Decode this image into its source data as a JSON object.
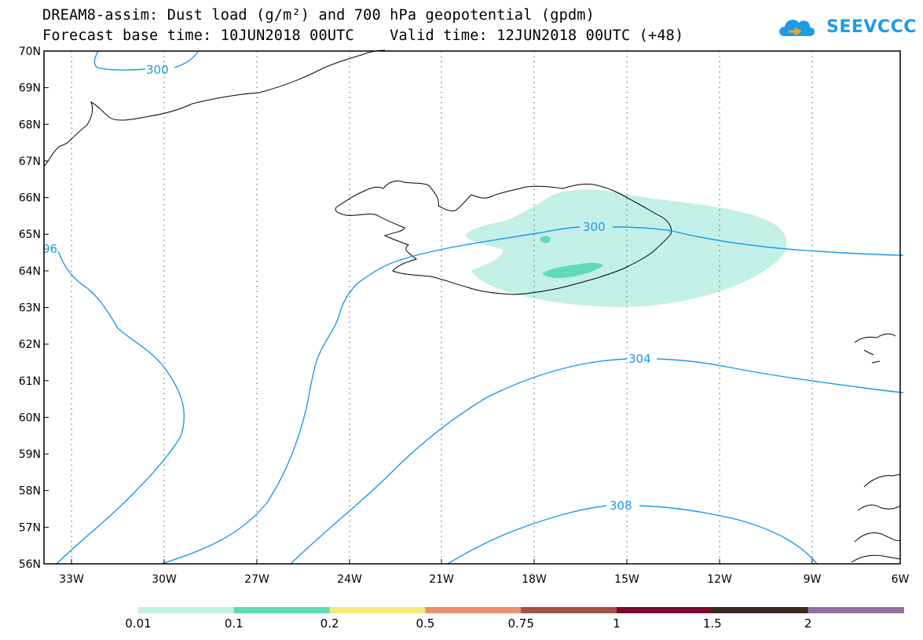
{
  "title_line1": "DREAM8-assim: Dust load (g/m²) and 700 hPa geopotential (gpdm)",
  "title_line2": "Forecast base time: 10JUN2018 00UTC    Valid time: 12JUN2018 00UTC (+48)",
  "logo_text": "SEEVCCC",
  "lat_labels": [
    "70N",
    "69N",
    "68N",
    "67N",
    "66N",
    "65N",
    "64N",
    "63N",
    "62N",
    "61N",
    "60N",
    "59N",
    "58N",
    "57N",
    "56N"
  ],
  "lon_labels": [
    "33W",
    "30W",
    "27W",
    "24W",
    "21W",
    "18W",
    "15W",
    "12W",
    "9W",
    "6W"
  ],
  "contour_labels": {
    "c300_top": "300",
    "c300_mid": "300",
    "c296": "96",
    "c304": "304",
    "c308": "308"
  },
  "colorbar": {
    "colors": [
      "#c2f0e6",
      "#5fdcb4",
      "#f5e87a",
      "#e8916e",
      "#a3514a",
      "#7a0a2e",
      "#3d2a1e",
      "#9070a0"
    ],
    "labels": [
      "0.01",
      "0.1",
      "0.2",
      "0.5",
      "0.75",
      "1",
      "1.5",
      "2"
    ]
  },
  "colors": {
    "contour": "#1a9ae8",
    "dust_low": "#c2f0e6",
    "dust_mid": "#5fdcb4"
  }
}
